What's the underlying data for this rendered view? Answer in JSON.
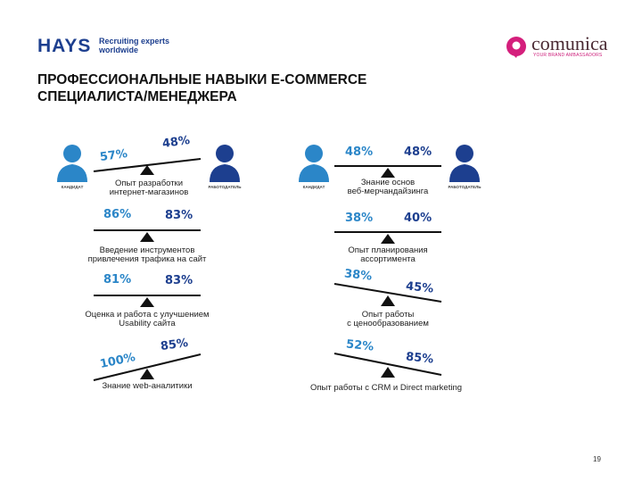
{
  "header": {
    "hays_logo": "HAYS",
    "hays_tagline_1": "Recruiting experts",
    "hays_tagline_2": "worldwide",
    "comunica_name": "comunica",
    "comunica_tagline": "YOUR BRAND AMBASSADORS",
    "title_line1": "ПРОФЕССИОНАЛЬНЫЕ НАВЫКИ E-COMMERCE",
    "title_line2": "СПЕЦИАЛИСТА/МЕНЕДЖЕРА"
  },
  "colors": {
    "candidate": "#2b86c8",
    "employer": "#1d3f8f",
    "scale": "#111111"
  },
  "people": {
    "left_candidate_label": "КАНДИДАТ",
    "left_employer_label": "РАБОТОДАТЕЛЬ",
    "right_candidate_label": "КАНДИДАТ",
    "right_employer_label": "РАБОТОДАТЕЛЬ"
  },
  "metrics": {
    "left": [
      {
        "candidate": "57%",
        "employer": "48%",
        "caption_1": "Опыт разработки",
        "caption_2": "интернет-магазинов"
      },
      {
        "candidate": "86%",
        "employer": "83%",
        "caption_1": "Введение инструментов",
        "caption_2": "привлечения трафика на сайт"
      },
      {
        "candidate": "81%",
        "employer": "83%",
        "caption_1": "Оценка и работа с улучшением",
        "caption_2": "Usability сайта"
      },
      {
        "candidate": "100%",
        "employer": "85%",
        "caption_1": "Знание web-аналитики",
        "caption_2": ""
      }
    ],
    "right": [
      {
        "candidate": "48%",
        "employer": "48%",
        "caption_1": "Знание основ",
        "caption_2": "веб-мерчандайзинга"
      },
      {
        "candidate": "38%",
        "employer": "40%",
        "caption_1": "Опыт планирования",
        "caption_2": "ассортимента"
      },
      {
        "candidate": "38%",
        "employer": "45%",
        "caption_1": "Опыт работы",
        "caption_2": "с ценообразованием"
      },
      {
        "candidate": "52%",
        "employer": "85%",
        "caption_1": "Опыт работы с CRM и Direct marketing",
        "caption_2": ""
      }
    ]
  },
  "footer": {
    "page_number": "19"
  }
}
